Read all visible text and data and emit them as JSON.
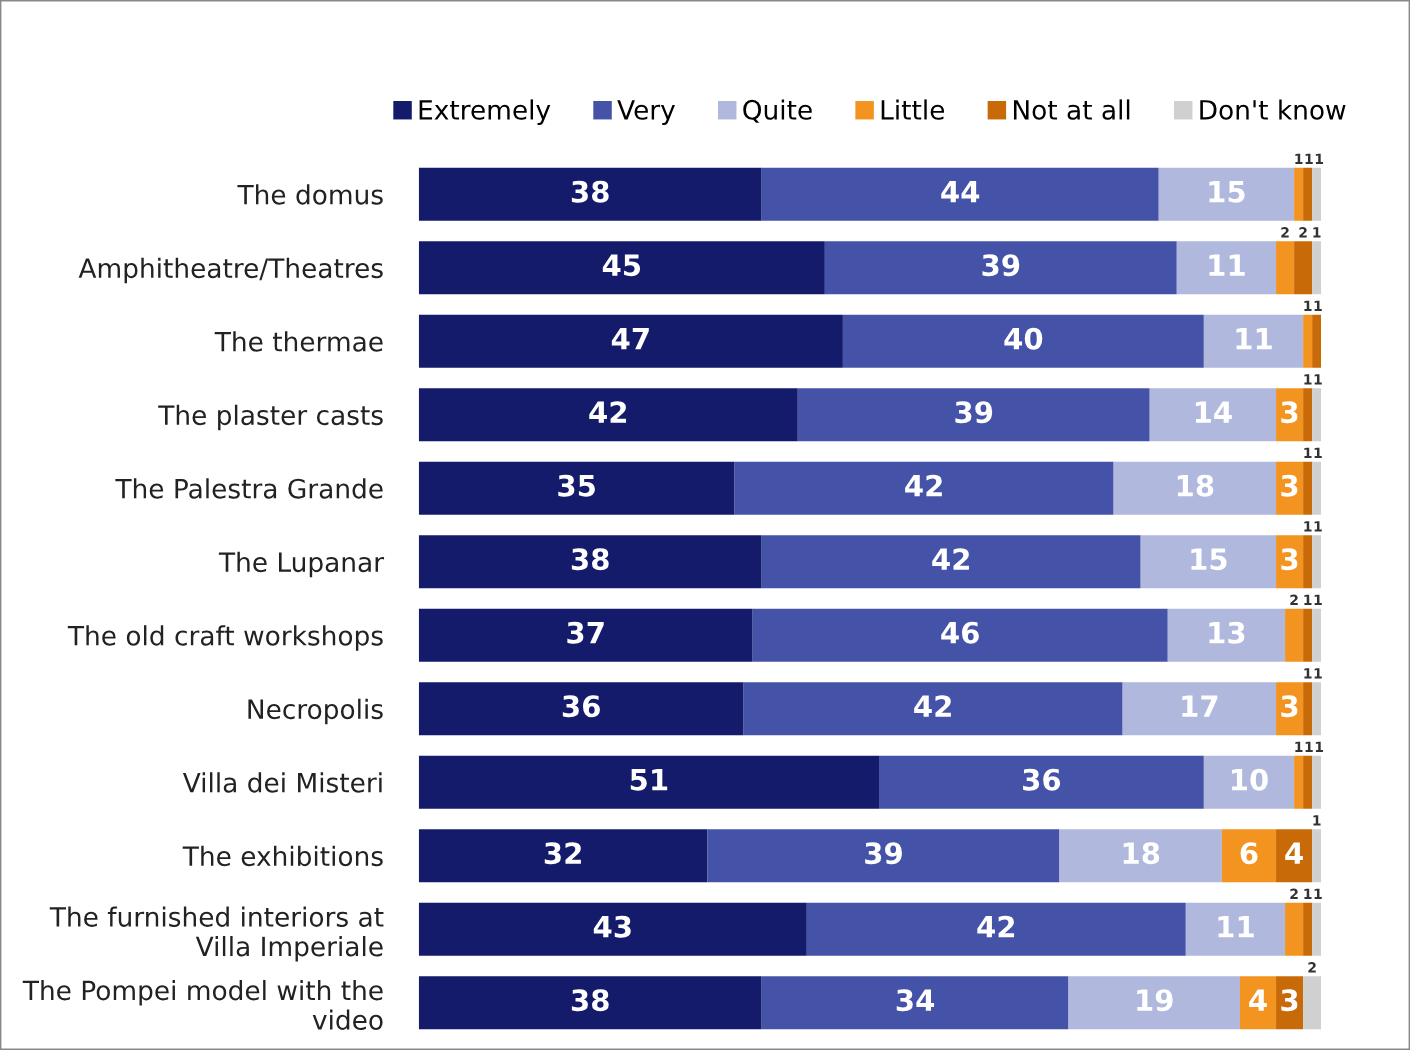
{
  "chart_data": {
    "type": "bar",
    "orientation": "horizontal",
    "stacked": true,
    "data_labels": true,
    "legend": "top",
    "grid": false,
    "categories": [
      "The domus",
      "Amphitheatre/Theatres",
      "The thermae",
      "The plaster casts",
      "The Palestra Grande",
      "The Lupanar",
      "The old craft workshops",
      "Necropolis",
      "Villa dei Misteri",
      "The exhibitions",
      "The furnished interiors at\nVilla Imperiale",
      "The Pompei model with the\nvideo"
    ],
    "series": [
      {
        "name": "Extremely",
        "color": "#141b6b",
        "values": [
          38,
          45,
          47,
          42,
          35,
          38,
          37,
          36,
          51,
          32,
          43,
          38
        ]
      },
      {
        "name": "Very",
        "color": "#4453a8",
        "values": [
          44,
          39,
          40,
          39,
          42,
          42,
          46,
          42,
          36,
          39,
          42,
          34
        ]
      },
      {
        "name": "Quite",
        "color": "#b0b8de",
        "values": [
          15,
          11,
          11,
          14,
          18,
          15,
          13,
          17,
          10,
          18,
          11,
          19
        ]
      },
      {
        "name": "Little",
        "color": "#f39320",
        "values": [
          1,
          2,
          1,
          3,
          3,
          3,
          2,
          3,
          1,
          6,
          2,
          4
        ]
      },
      {
        "name": "Not at all",
        "color": "#c96a08",
        "values": [
          1,
          2,
          1,
          1,
          1,
          1,
          1,
          1,
          1,
          4,
          1,
          3
        ]
      },
      {
        "name": "Don't know",
        "color": "#d0d0d0",
        "values": [
          1,
          1,
          null,
          1,
          1,
          1,
          1,
          1,
          1,
          1,
          1,
          2
        ]
      }
    ]
  }
}
